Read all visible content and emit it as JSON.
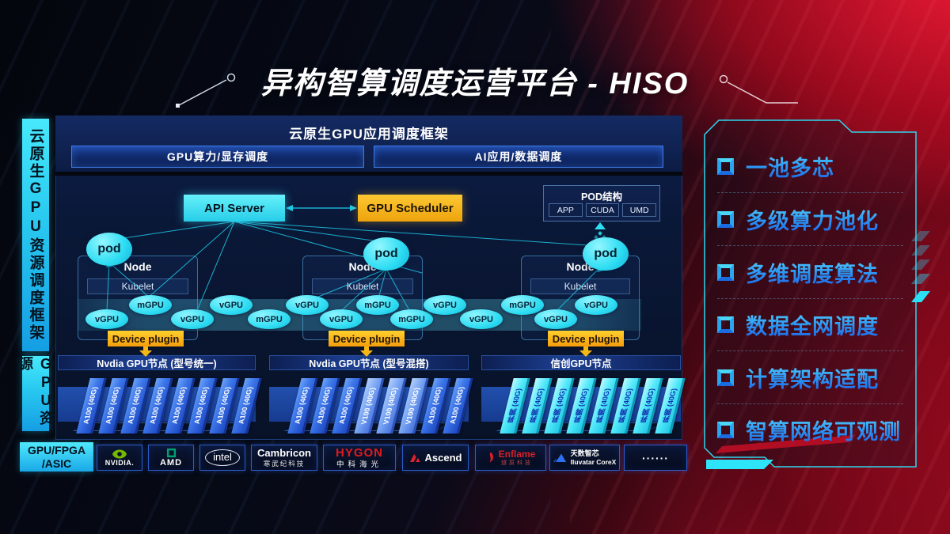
{
  "page_title": "异构智算调度运营平台 - HISO",
  "sidebar": {
    "framework_label": "云原生GPU资源调度框架",
    "gpu_resource_label": "GPU资源",
    "hardware_label_line1": "GPU/FPGA",
    "hardware_label_line2": "/ASIC"
  },
  "framework": {
    "title": "云原生GPU应用调度框架",
    "button_left": "GPU算力/显存调度",
    "button_right": "AI应用/数据调度"
  },
  "scheduler": {
    "api_server": "API Server",
    "gpu_scheduler": "GPU Scheduler",
    "pod_structure": {
      "title": "POD结构",
      "chips": [
        "APP",
        "CUDA",
        "UMD"
      ]
    },
    "pod_label": "pod",
    "node_label": "Node",
    "kubelet_label": "Kubelet",
    "device_plugin_label": "Device plugin",
    "resource_ellipses": [
      "vGPU",
      "mGPU",
      "vGPU",
      "vGPU",
      "mGPU",
      "vGPU",
      "vGPU",
      "mGPU",
      "mGPU",
      "vGPU",
      "vGPU",
      "mGPU",
      "vGPU",
      "vGPU"
    ]
  },
  "gpu_nodes": [
    {
      "title": "Nvdia GPU节点 (型号统一)",
      "style": "blue",
      "cards": [
        "A100 (40G)",
        "A100 (40G)",
        "A100 (40G)",
        "A100 (40G)",
        "A100 (40G)",
        "A100 (40G)",
        "A100 (40G)",
        "A100 (40G)"
      ]
    },
    {
      "title": "Nvdia GPU节点 (型号混搭)",
      "style": "blue",
      "cards": [
        "A100 (40G)",
        "A100 (40G)",
        "A100 (40G)",
        "V100 (40G)",
        "V100 (40G)",
        "V100 (40G)",
        "A100 (40G)",
        "A100 (40G)"
      ]
    },
    {
      "title": "信创GPU节点",
      "style": "cyan",
      "cards": [
        "昇腾 (40G)",
        "昇腾 (40G)",
        "昇腾 (40G)",
        "昇腾 (40G)",
        "昇腾 (40G)",
        "昇腾 (40G)",
        "昇腾 (40G)",
        "昇腾 (40G)"
      ]
    }
  ],
  "vendors": [
    {
      "name": "nvidia",
      "text": "NVIDIA."
    },
    {
      "name": "amd",
      "text": "AMD"
    },
    {
      "name": "intel",
      "text": "intel"
    },
    {
      "name": "cambricon",
      "text": "Cambricon",
      "sub": "寒武纪科技"
    },
    {
      "name": "hygon",
      "text": "HYGON",
      "sub": "中科海光"
    },
    {
      "name": "ascend",
      "text": "Ascend"
    },
    {
      "name": "enflame",
      "text": "Enflame",
      "sub": "燧原科技"
    },
    {
      "name": "iluvatar",
      "text": "天数智芯",
      "sub": "Iluvatar CoreX"
    },
    {
      "name": "more",
      "text": "······"
    }
  ],
  "features": [
    "一池多芯",
    "多级算力池化",
    "多维调度算法",
    "数据全网调度",
    "计算架构适配",
    "智算网络可观测"
  ],
  "colors": {
    "accent_cyan": "#2be0f5",
    "accent_yellow": "#f5b716",
    "accent_red": "#c01028",
    "panel_blue": "#0a1838"
  }
}
